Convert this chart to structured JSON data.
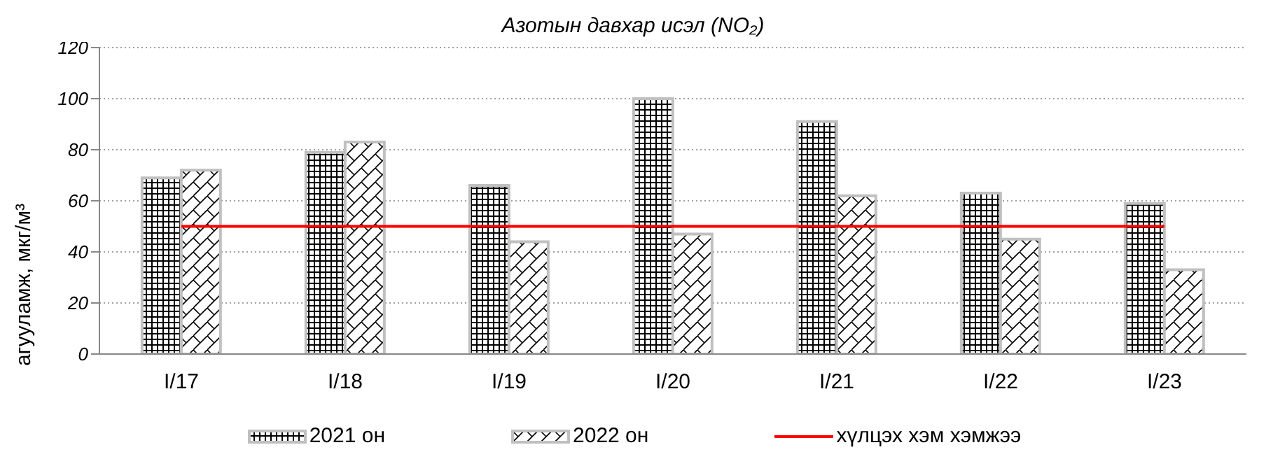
{
  "chart_data": {
    "type": "bar",
    "title": "Азотын давхар исэл (NO₂)",
    "ylabel": "агууламж, мкг/м³",
    "categories": [
      "I/17",
      "I/18",
      "I/19",
      "I/20",
      "I/21",
      "I/22",
      "I/23"
    ],
    "series": [
      {
        "name": "2021 он",
        "color": "#c0c0c0",
        "values": [
          69,
          79,
          66,
          100,
          91,
          63,
          59
        ]
      },
      {
        "name": "2022 он",
        "color": "#c0c0c0",
        "values": [
          72,
          83,
          44,
          47,
          62,
          45,
          33
        ]
      },
      {
        "name": "хүлцэх хэм хэмжээ",
        "type": "line",
        "color": "#ff0000",
        "values": [
          50,
          50,
          50,
          50,
          50,
          50,
          50
        ]
      }
    ],
    "ylim": [
      0,
      120
    ],
    "yticks": [
      0,
      20,
      40,
      60,
      80,
      100,
      120
    ],
    "grid": "y",
    "legend": "bottom",
    "marker": "none",
    "line_style": "solid"
  }
}
